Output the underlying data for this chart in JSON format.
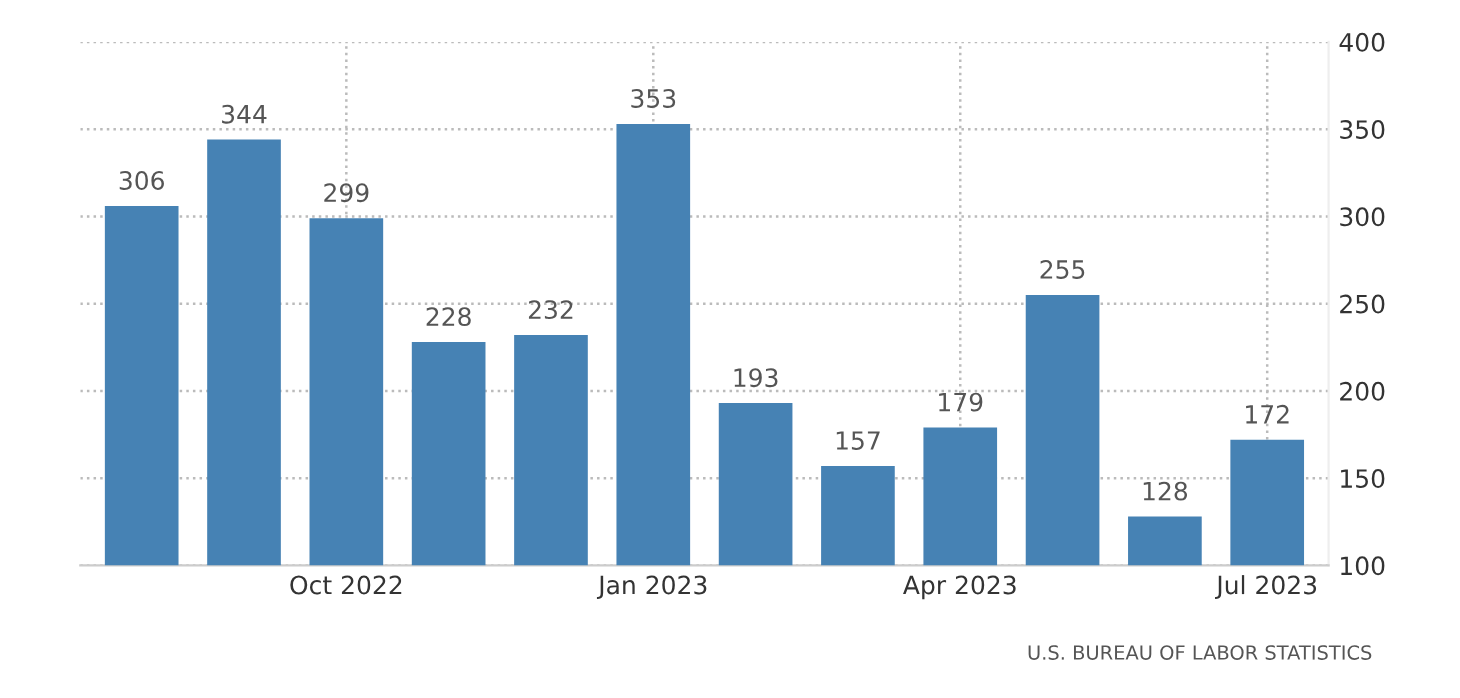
{
  "chart_data": {
    "type": "bar",
    "categories": [
      null,
      null,
      "Oct 2022",
      null,
      null,
      "Jan 2023",
      null,
      null,
      "Apr 2023",
      null,
      null,
      "Jul 2023"
    ],
    "values": [
      306,
      344,
      299,
      228,
      232,
      353,
      193,
      157,
      179,
      255,
      128,
      172
    ],
    "color": "#4682b4",
    "ylim": [
      100,
      400
    ],
    "yticks": [
      100,
      150,
      200,
      250,
      300,
      350,
      400
    ],
    "grid": true,
    "data_labels": true,
    "annotations": [
      "U.S. BUREAU OF LABOR STATISTICS"
    ]
  }
}
